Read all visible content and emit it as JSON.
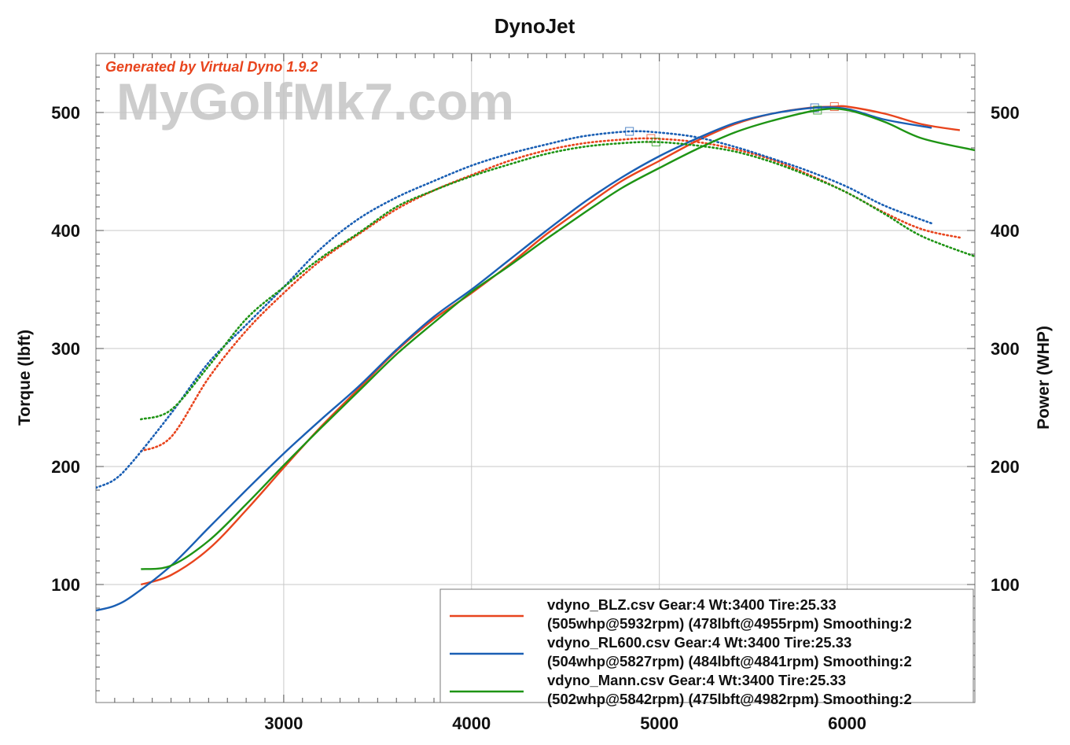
{
  "chart_data": {
    "type": "line",
    "title": "DynoJet",
    "generated_note": "Generated by Virtual Dyno 1.9.2",
    "watermark": "MyGolfMk7.com",
    "xlabel": "",
    "ylabel_left": "Torque (lbft)",
    "ylabel_right": "Power (WHP)",
    "xlim": [
      2000,
      6680
    ],
    "ylim": [
      0,
      550
    ],
    "xticks": [
      3000,
      4000,
      5000,
      6000
    ],
    "yticks_left": [
      100,
      200,
      300,
      400,
      500
    ],
    "yticks_right": [
      100,
      200,
      300,
      400,
      500
    ],
    "grid": true,
    "legend_position": "bottom-right",
    "series": [
      {
        "name": "vdyno_BLZ.csv Gear:4 Wt:3400 Tire:25.33",
        "name2": "(505whp@5932rpm) (478lbft@4955rpm) Smoothing:2",
        "color": "#e8441d",
        "power": [
          [
            2240,
            100
          ],
          [
            2400,
            108
          ],
          [
            2600,
            130
          ],
          [
            2800,
            163
          ],
          [
            3000,
            199
          ],
          [
            3200,
            234
          ],
          [
            3400,
            266
          ],
          [
            3600,
            298
          ],
          [
            3800,
            325
          ],
          [
            4000,
            347
          ],
          [
            4200,
            371
          ],
          [
            4400,
            397
          ],
          [
            4600,
            420
          ],
          [
            4800,
            442
          ],
          [
            5000,
            459
          ],
          [
            5200,
            476
          ],
          [
            5400,
            490
          ],
          [
            5600,
            499
          ],
          [
            5800,
            504
          ],
          [
            5932,
            505
          ],
          [
            6000,
            505
          ],
          [
            6200,
            499
          ],
          [
            6400,
            490
          ],
          [
            6600,
            485
          ]
        ],
        "torque": [
          [
            2240,
            213
          ],
          [
            2400,
            225
          ],
          [
            2600,
            275
          ],
          [
            2800,
            315
          ],
          [
            3000,
            347
          ],
          [
            3200,
            375
          ],
          [
            3400,
            397
          ],
          [
            3600,
            418
          ],
          [
            3800,
            434
          ],
          [
            4000,
            447
          ],
          [
            4200,
            459
          ],
          [
            4400,
            468
          ],
          [
            4600,
            474
          ],
          [
            4800,
            477
          ],
          [
            4955,
            478
          ],
          [
            5200,
            475
          ],
          [
            5400,
            469
          ],
          [
            5600,
            460
          ],
          [
            5800,
            447
          ],
          [
            6000,
            432
          ],
          [
            6200,
            415
          ],
          [
            6400,
            401
          ],
          [
            6600,
            394
          ]
        ],
        "power_peak": [
          5932,
          505
        ],
        "torque_peak": [
          4955,
          478
        ]
      },
      {
        "name": "vdyno_RL600.csv Gear:4 Wt:3400 Tire:25.33",
        "name2": "(504whp@5827rpm) (484lbft@4841rpm) Smoothing:2",
        "color": "#1a5fb4",
        "power": [
          [
            2000,
            78
          ],
          [
            2100,
            82
          ],
          [
            2200,
            91
          ],
          [
            2400,
            116
          ],
          [
            2600,
            148
          ],
          [
            2800,
            180
          ],
          [
            3000,
            211
          ],
          [
            3200,
            240
          ],
          [
            3400,
            268
          ],
          [
            3600,
            299
          ],
          [
            3800,
            327
          ],
          [
            4000,
            350
          ],
          [
            4200,
            375
          ],
          [
            4400,
            400
          ],
          [
            4600,
            424
          ],
          [
            4800,
            445
          ],
          [
            5000,
            463
          ],
          [
            5200,
            478
          ],
          [
            5400,
            491
          ],
          [
            5600,
            499
          ],
          [
            5827,
            504
          ],
          [
            6000,
            503
          ],
          [
            6200,
            494
          ],
          [
            6450,
            487
          ]
        ],
        "torque": [
          [
            2000,
            182
          ],
          [
            2100,
            189
          ],
          [
            2200,
            205
          ],
          [
            2400,
            245
          ],
          [
            2600,
            288
          ],
          [
            2800,
            320
          ],
          [
            3000,
            352
          ],
          [
            3200,
            385
          ],
          [
            3400,
            410
          ],
          [
            3600,
            428
          ],
          [
            3800,
            442
          ],
          [
            4000,
            455
          ],
          [
            4200,
            465
          ],
          [
            4400,
            473
          ],
          [
            4600,
            480
          ],
          [
            4841,
            484
          ],
          [
            5000,
            483
          ],
          [
            5200,
            479
          ],
          [
            5400,
            471
          ],
          [
            5600,
            461
          ],
          [
            5800,
            450
          ],
          [
            6000,
            437
          ],
          [
            6200,
            421
          ],
          [
            6450,
            406
          ]
        ],
        "power_peak": [
          5827,
          504
        ],
        "torque_peak": [
          4841,
          484
        ]
      },
      {
        "name": "vdyno_Mann.csv Gear:4 Wt:3400 Tire:25.33",
        "name2": "(502whp@5842rpm) (475lbft@4982rpm) Smoothing:2",
        "color": "#1e9414",
        "power": [
          [
            2240,
            113
          ],
          [
            2400,
            116
          ],
          [
            2600,
            137
          ],
          [
            2800,
            168
          ],
          [
            3000,
            201
          ],
          [
            3200,
            233
          ],
          [
            3400,
            264
          ],
          [
            3600,
            295
          ],
          [
            3800,
            322
          ],
          [
            4000,
            348
          ],
          [
            4200,
            370
          ],
          [
            4400,
            393
          ],
          [
            4600,
            415
          ],
          [
            4800,
            436
          ],
          [
            5000,
            453
          ],
          [
            5200,
            469
          ],
          [
            5400,
            483
          ],
          [
            5600,
            493
          ],
          [
            5842,
            502
          ],
          [
            6000,
            502
          ],
          [
            6200,
            492
          ],
          [
            6400,
            478
          ],
          [
            6680,
            468
          ]
        ],
        "torque": [
          [
            2240,
            240
          ],
          [
            2400,
            248
          ],
          [
            2600,
            285
          ],
          [
            2800,
            325
          ],
          [
            3000,
            352
          ],
          [
            3200,
            377
          ],
          [
            3400,
            398
          ],
          [
            3600,
            420
          ],
          [
            3800,
            434
          ],
          [
            4000,
            446
          ],
          [
            4200,
            456
          ],
          [
            4400,
            465
          ],
          [
            4600,
            471
          ],
          [
            4800,
            474
          ],
          [
            4982,
            475
          ],
          [
            5200,
            472
          ],
          [
            5400,
            467
          ],
          [
            5600,
            458
          ],
          [
            5800,
            446
          ],
          [
            6000,
            432
          ],
          [
            6200,
            414
          ],
          [
            6400,
            395
          ],
          [
            6680,
            378
          ]
        ],
        "power_peak": [
          5842,
          502
        ],
        "torque_peak": [
          4982,
          475
        ]
      }
    ]
  }
}
